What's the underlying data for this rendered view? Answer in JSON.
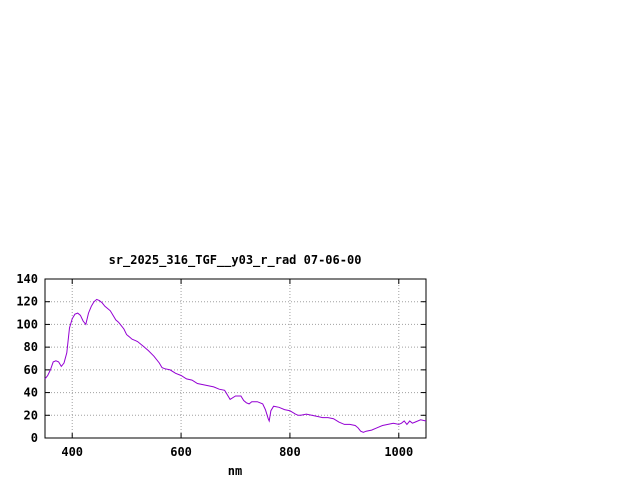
{
  "chart_data": {
    "type": "line",
    "title": "sr_2025_316_TGF__y03_r_rad 07-06-00",
    "xlabel": "nm",
    "ylabel": "",
    "xlim": [
      350,
      1050
    ],
    "ylim": [
      0,
      140
    ],
    "x_ticks": [
      400,
      600,
      800,
      1000
    ],
    "y_ticks": [
      0,
      20,
      40,
      60,
      80,
      100,
      120,
      140
    ],
    "grid": true,
    "line_color": "#9400d3",
    "series": [
      {
        "x": [
          350,
          355,
          360,
          365,
          370,
          375,
          380,
          385,
          390,
          395,
          400,
          405,
          410,
          415,
          420,
          425,
          430,
          435,
          440,
          445,
          450,
          455,
          460,
          465,
          470,
          475,
          480,
          485,
          490,
          495,
          500,
          505,
          510,
          515,
          520,
          530,
          540,
          550,
          560,
          565,
          570,
          580,
          590,
          600,
          610,
          620,
          630,
          640,
          650,
          660,
          670,
          680,
          685,
          690,
          700,
          710,
          715,
          720,
          725,
          730,
          740,
          750,
          755,
          760,
          762,
          765,
          770,
          780,
          790,
          800,
          810,
          815,
          820,
          830,
          840,
          850,
          860,
          870,
          880,
          890,
          900,
          910,
          920,
          925,
          930,
          935,
          940,
          950,
          960,
          970,
          980,
          990,
          1000,
          1005,
          1010,
          1015,
          1020,
          1025,
          1030,
          1040,
          1050
        ],
        "y": [
          52,
          55,
          60,
          67,
          68,
          67,
          63,
          66,
          75,
          97,
          105,
          109,
          110,
          108,
          103,
          100,
          110,
          116,
          120,
          122,
          121,
          119,
          116,
          114,
          112,
          108,
          104,
          102,
          99,
          96,
          91,
          89,
          87,
          86,
          85,
          81,
          77,
          72,
          66,
          62,
          61,
          60,
          57,
          55,
          52,
          51,
          48,
          47,
          46,
          45,
          43,
          42,
          38,
          34,
          37,
          37,
          33,
          31,
          30,
          32,
          32,
          30,
          25,
          17,
          15,
          24,
          28,
          27,
          25,
          24,
          21,
          20,
          20,
          21,
          20,
          19,
          18,
          18,
          17,
          14,
          12,
          12,
          11,
          9,
          6,
          5,
          6,
          7,
          9,
          11,
          12,
          13,
          12,
          13,
          15,
          12,
          15,
          13,
          14,
          16,
          15
        ]
      }
    ]
  }
}
